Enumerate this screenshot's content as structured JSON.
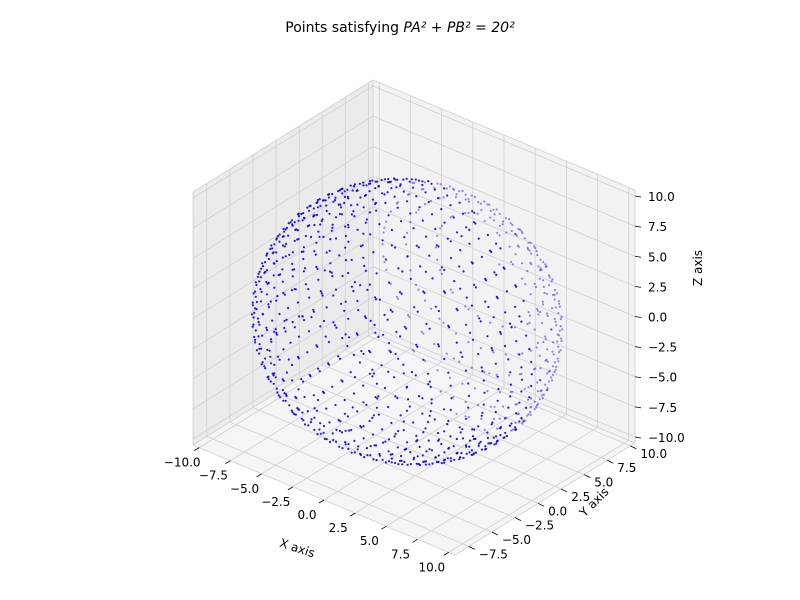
{
  "chart_data": {
    "type": "scatter",
    "title_text": "Points satisfying ",
    "title_math": "PA² + PB² = 20²",
    "xlabel": "X axis",
    "ylabel": "Y axis",
    "zlabel": "Z axis",
    "xlim": [
      -10.5,
      10.5
    ],
    "ylim": [
      -9.0,
      10.5
    ],
    "zlim": [
      -10.5,
      10.5
    ],
    "x_ticks": [
      "−10.0",
      "−7.5",
      "−5.0",
      "−2.5",
      "0.0",
      "2.5",
      "5.0",
      "7.5",
      "10.0"
    ],
    "y_ticks": [
      "−7.5",
      "−5.0",
      "−2.5",
      "0.0",
      "2.5",
      "5.0",
      "7.5",
      "10.0"
    ],
    "z_ticks": [
      "−10.0",
      "−7.5",
      "−5.0",
      "−2.5",
      "0.0",
      "2.5",
      "5.0",
      "7.5",
      "10.0"
    ],
    "grid": true,
    "point_color": "#0000ff",
    "marker_size": 1,
    "surface": {
      "shape": "sphere",
      "center": [
        0,
        0,
        0
      ],
      "radius": 10,
      "point_spacing": 1
    }
  }
}
